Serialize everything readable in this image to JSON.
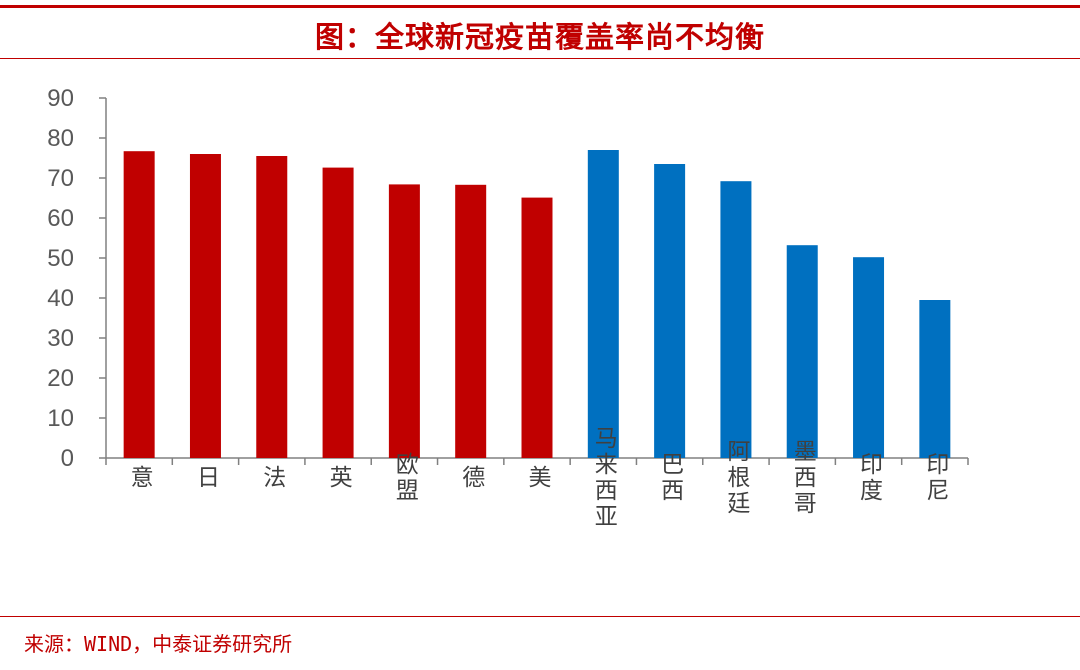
{
  "title": "图：全球新冠疫苗覆盖率尚不均衡",
  "source": "来源：WIND，中泰证券研究所",
  "chart_data": {
    "type": "bar",
    "categories": [
      "意",
      "日",
      "法",
      "英",
      "欧盟",
      "德",
      "美",
      "马来西亚",
      "巴西",
      "阿根廷",
      "墨西哥",
      "印度",
      "印尼"
    ],
    "values": [
      76.7,
      76.0,
      75.5,
      72.6,
      68.4,
      68.3,
      65.1,
      77.0,
      73.5,
      69.2,
      53.2,
      50.2,
      39.5
    ],
    "bar_colors": [
      "#c00000",
      "#c00000",
      "#c00000",
      "#c00000",
      "#c00000",
      "#c00000",
      "#c00000",
      "#0070c0",
      "#0070c0",
      "#0070c0",
      "#0070c0",
      "#0070c0",
      "#0070c0"
    ],
    "ylim": [
      0,
      90
    ],
    "yticks": [
      0,
      10,
      20,
      30,
      40,
      50,
      60,
      70,
      80,
      90
    ],
    "xlabel": "",
    "ylabel": "",
    "grid": false,
    "legend": "none"
  }
}
